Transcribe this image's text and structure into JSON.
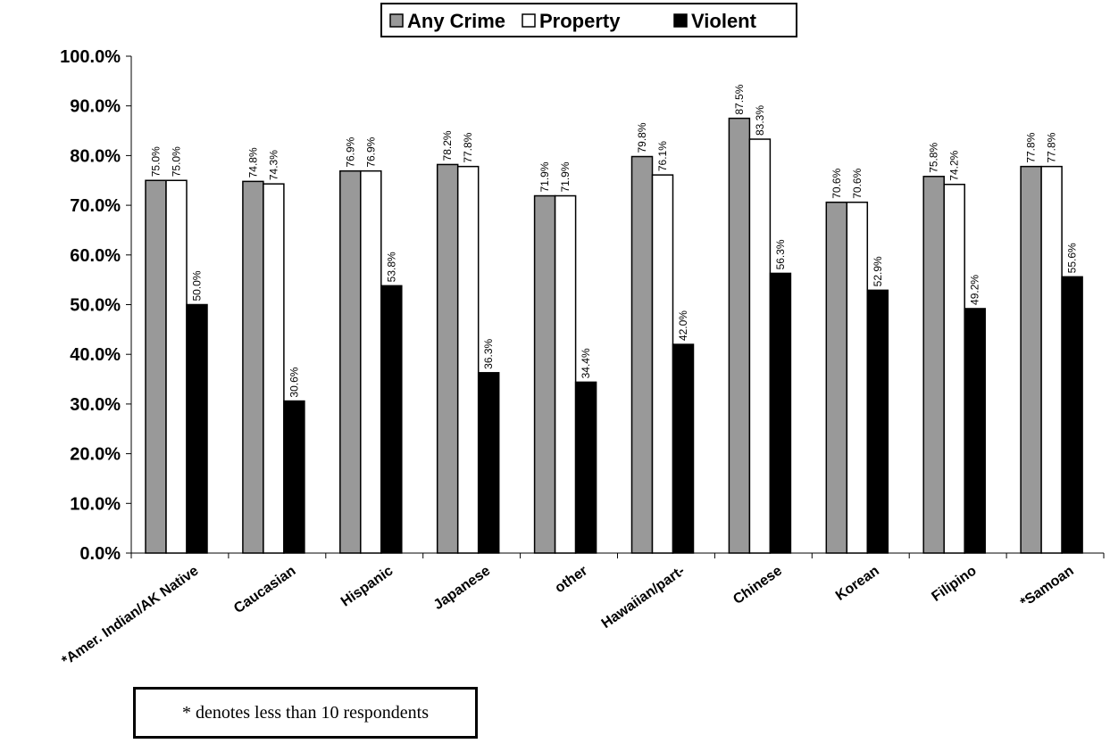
{
  "chart_data": {
    "type": "bar",
    "categories": [
      "*Amer. Indian/AK Native",
      "Caucasian",
      "Hispanic",
      "Japanese",
      "other",
      "Hawaiian/part-",
      "Chinese",
      "Korean",
      "Filipino",
      "*Samoan"
    ],
    "series": [
      {
        "name": "Any Crime",
        "color": "#999999",
        "values": [
          75.0,
          74.8,
          76.9,
          78.2,
          71.9,
          79.8,
          87.5,
          70.6,
          75.8,
          77.8
        ],
        "labels": [
          "75.0%",
          "74.8%",
          "76.9%",
          "78.2%",
          "71.9%",
          "79.8%",
          "87.5%",
          "70.6%",
          "75.8%",
          "77.8%"
        ]
      },
      {
        "name": "Property",
        "color": "#ffffff",
        "values": [
          75.0,
          74.3,
          76.9,
          77.8,
          71.9,
          76.1,
          83.3,
          70.6,
          74.2,
          77.8
        ],
        "labels": [
          "75.0%",
          "74.3%",
          "76.9%",
          "77.8%",
          "71.9%",
          "76.1%",
          "83.3%",
          "70.6%",
          "74.2%",
          "77.8%"
        ]
      },
      {
        "name": "Violent",
        "color": "#000000",
        "values": [
          50.0,
          30.6,
          53.8,
          36.3,
          34.4,
          42.0,
          56.3,
          52.9,
          49.2,
          55.6
        ],
        "labels": [
          "50.0%",
          "30.6%",
          "53.8%",
          "36.3%",
          "34.4%",
          "42.0%",
          "56.3%",
          "52.9%",
          "49.2%",
          "55.6%"
        ]
      }
    ],
    "yticks": [
      "0.0%",
      "10.0%",
      "20.0%",
      "30.0%",
      "40.0%",
      "50.0%",
      "60.0%",
      "70.0%",
      "80.0%",
      "90.0%",
      "100.0%"
    ],
    "ylim": [
      0,
      100
    ],
    "title": "",
    "xlabel": "",
    "ylabel": "",
    "legend_position": "top-center",
    "grid": false
  },
  "footnote": "* denotes less than 10 respondents"
}
